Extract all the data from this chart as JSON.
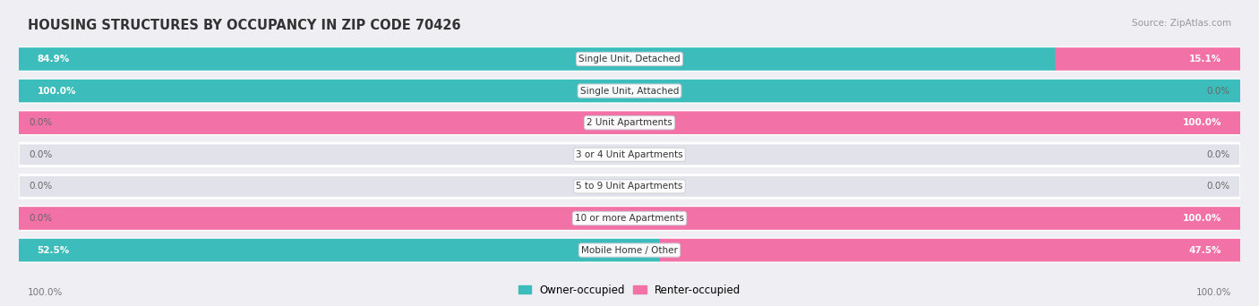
{
  "title": "HOUSING STRUCTURES BY OCCUPANCY IN ZIP CODE 70426",
  "source": "Source: ZipAtlas.com",
  "categories": [
    "Single Unit, Detached",
    "Single Unit, Attached",
    "2 Unit Apartments",
    "3 or 4 Unit Apartments",
    "5 to 9 Unit Apartments",
    "10 or more Apartments",
    "Mobile Home / Other"
  ],
  "owner_values": [
    84.9,
    100.0,
    0.0,
    0.0,
    0.0,
    0.0,
    52.5
  ],
  "renter_values": [
    15.1,
    0.0,
    100.0,
    0.0,
    0.0,
    100.0,
    47.5
  ],
  "owner_color": "#3DBCBC",
  "renter_color": "#F272A8",
  "owner_label": "Owner-occupied",
  "renter_label": "Renter-occupied",
  "bg_color": "#eeeef3",
  "bar_bg_color": "#e2e2ea",
  "bar_bg_edge_color": "#ffffff",
  "title_color": "#333333",
  "value_color_inside": "#ffffff",
  "value_color_outside": "#666666",
  "axis_label_left": "100.0%",
  "axis_label_right": "100.0%",
  "figsize": [
    14.06,
    3.42
  ],
  "dpi": 100
}
